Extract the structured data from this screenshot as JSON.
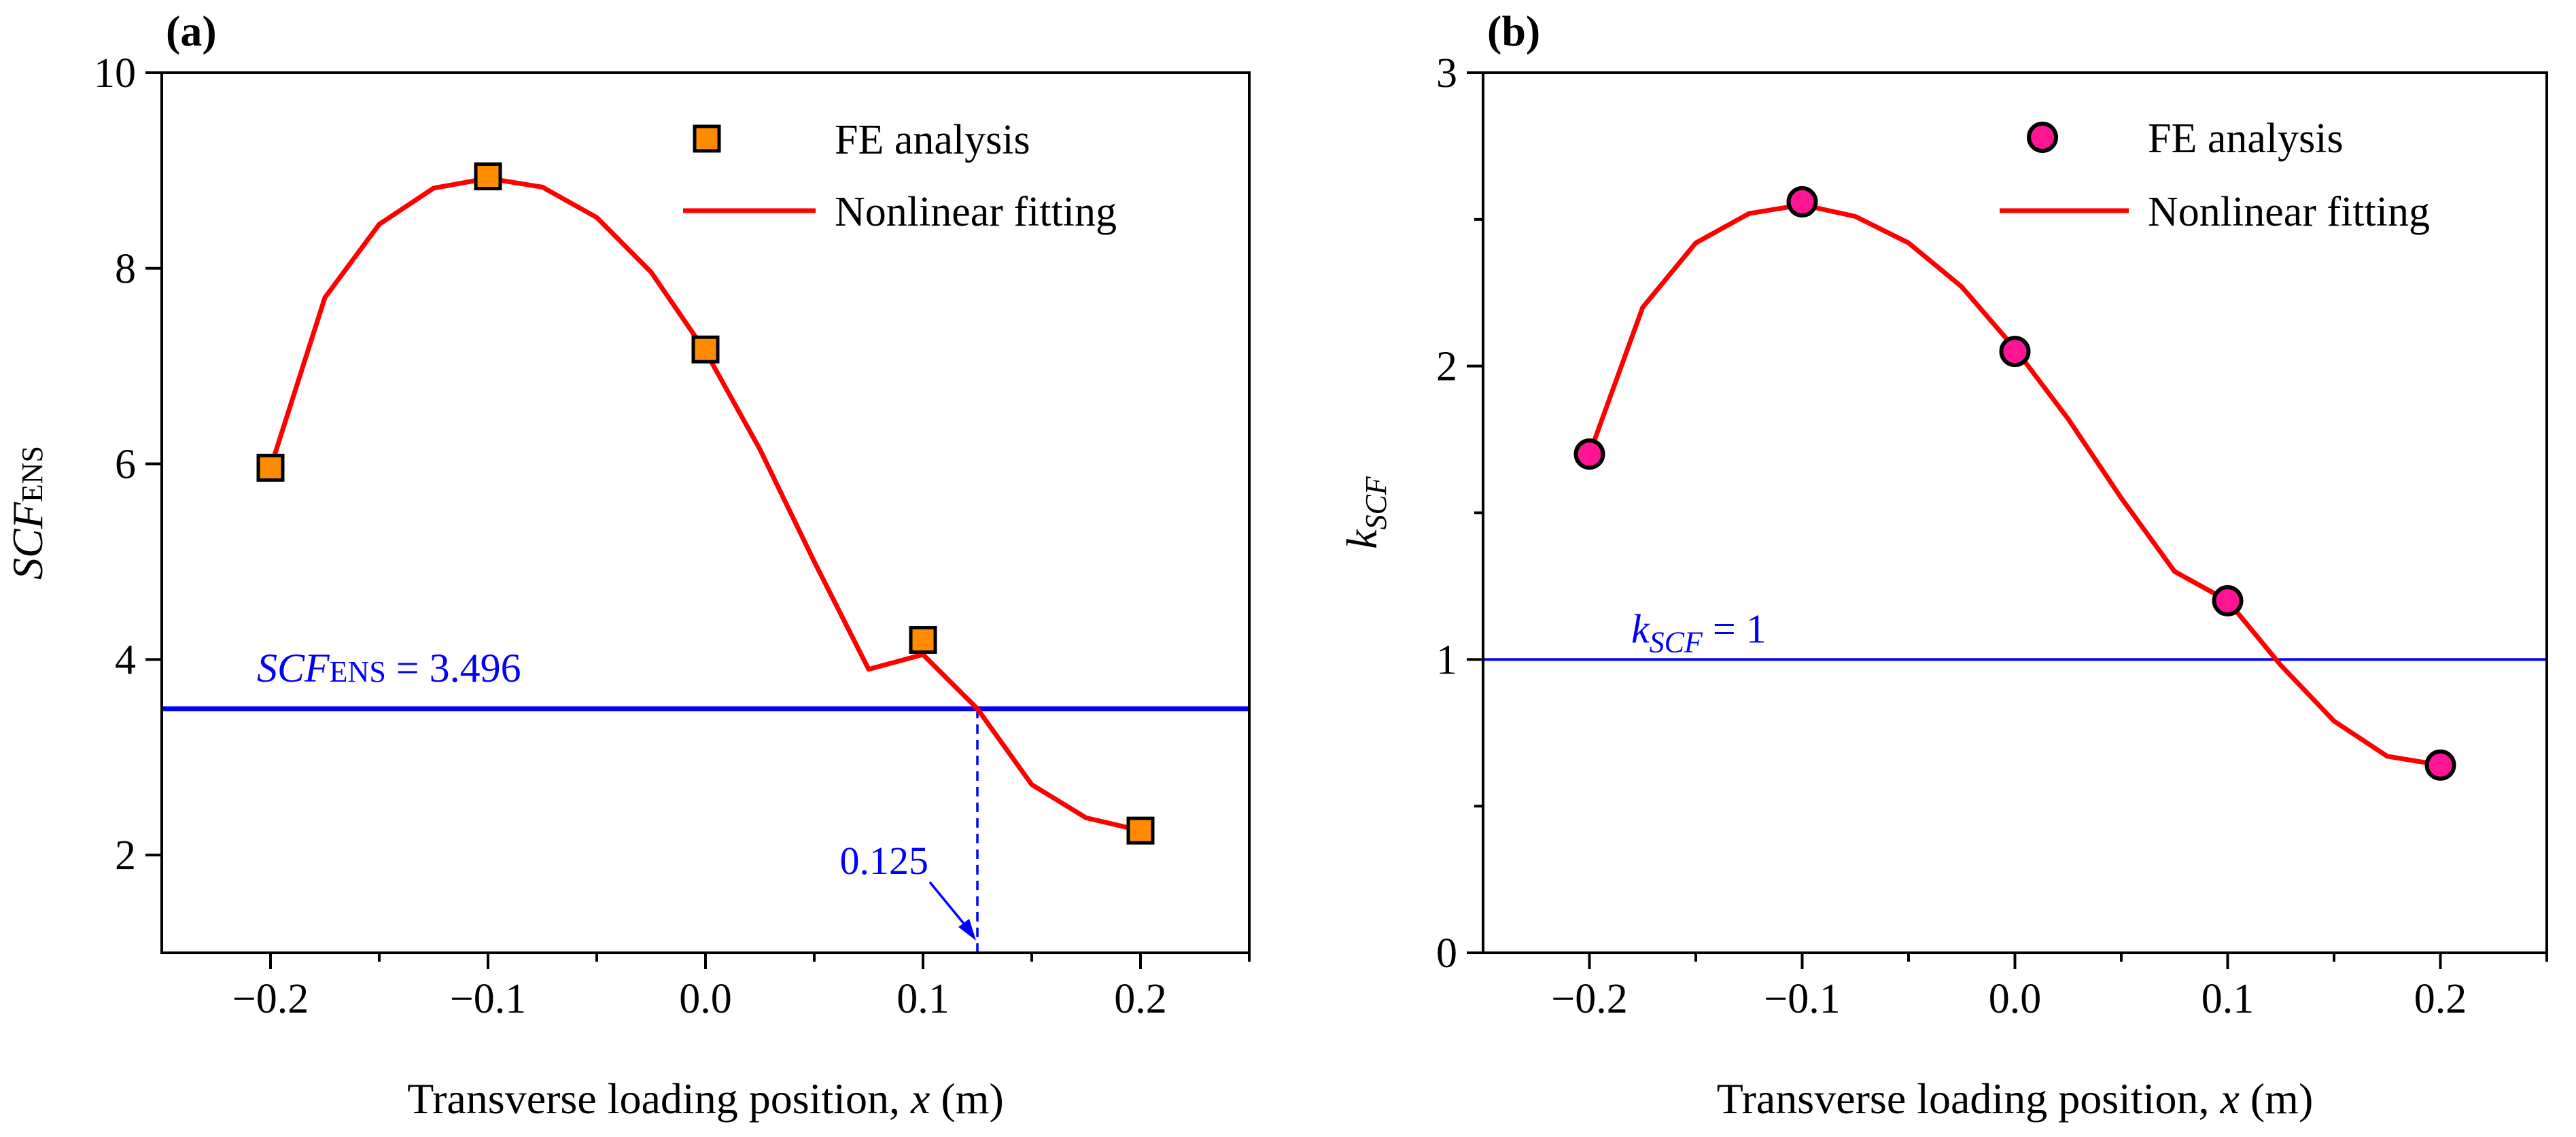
{
  "colors": {
    "axis": "#000000",
    "fit_line": "#ff0000",
    "threshold_line": "#0000ff",
    "annotation": "#0000ff",
    "marker_a": "#ff8c00",
    "marker_b": "#ff1493",
    "marker_edge": "#000000"
  },
  "chart_data": [
    {
      "type": "scatter",
      "panel_label": "(a)",
      "xlabel_main": "Transverse loading position, ",
      "xlabel_var": "x",
      "xlabel_unit": " (m)",
      "ylabel_main": "SCF",
      "ylabel_sub": "ENS",
      "xlim": [
        -0.25,
        0.25
      ],
      "ylim": [
        1,
        10
      ],
      "xticks": [
        -0.2,
        -0.1,
        0.0,
        0.1,
        0.2
      ],
      "xtick_labels": [
        "−0.2",
        "−0.1",
        "0.0",
        "0.1",
        "0.2"
      ],
      "yticks": [
        2,
        4,
        6,
        8,
        10
      ],
      "ytick_labels": [
        "2",
        "4",
        "6",
        "8",
        "10"
      ],
      "legend_position": "top-right",
      "series": [
        {
          "name": "FE analysis",
          "kind": "markers",
          "marker": "square",
          "x": [
            -0.2,
            -0.1,
            0.0,
            0.1,
            0.2
          ],
          "y": [
            5.96,
            8.94,
            7.17,
            4.2,
            2.25
          ]
        },
        {
          "name": "Nonlinear fitting",
          "kind": "curve",
          "x": [
            -0.2,
            -0.175,
            -0.15,
            -0.125,
            -0.1,
            -0.075,
            -0.05,
            -0.025,
            0.0,
            0.025,
            0.05,
            0.075,
            0.1,
            0.125,
            0.15,
            0.175,
            0.2
          ],
          "y": [
            5.96,
            7.7,
            8.45,
            8.82,
            8.92,
            8.83,
            8.52,
            7.96,
            7.15,
            6.15,
            5.0,
            3.9,
            4.05,
            3.496,
            2.72,
            2.38,
            2.25
          ]
        }
      ],
      "threshold": {
        "y": 3.496,
        "label_main": "SCF",
        "label_sub": "ENS",
        "label_rest": " = 3.496"
      },
      "intersection": {
        "x": 0.125,
        "label": "0.125"
      }
    },
    {
      "type": "scatter",
      "panel_label": "(b)",
      "xlabel_main": "Transverse loading position, ",
      "xlabel_var": "x",
      "xlabel_unit": " (m)",
      "ylabel_main": "k",
      "ylabel_sub": "SCF",
      "xlim": [
        -0.25,
        0.25
      ],
      "ylim": [
        0,
        3
      ],
      "xticks": [
        -0.2,
        -0.1,
        0.0,
        0.1,
        0.2
      ],
      "xtick_labels": [
        "−0.2",
        "−0.1",
        "0.0",
        "0.1",
        "0.2"
      ],
      "yticks": [
        0,
        1,
        2,
        3
      ],
      "ytick_labels": [
        "0",
        "1",
        "2",
        "3"
      ],
      "legend_position": "top-right",
      "series": [
        {
          "name": "FE analysis",
          "kind": "markers",
          "marker": "circle",
          "x": [
            -0.2,
            -0.1,
            0.0,
            0.1,
            0.2
          ],
          "y": [
            1.7,
            2.56,
            2.05,
            1.2,
            0.64
          ]
        },
        {
          "name": "Nonlinear fitting",
          "kind": "curve",
          "x": [
            -0.2,
            -0.175,
            -0.15,
            -0.125,
            -0.1,
            -0.075,
            -0.05,
            -0.025,
            0.0,
            0.025,
            0.05,
            0.075,
            0.1,
            0.125,
            0.15,
            0.175,
            0.2
          ],
          "y": [
            1.7,
            2.2,
            2.42,
            2.52,
            2.55,
            2.51,
            2.42,
            2.27,
            2.06,
            1.82,
            1.55,
            1.3,
            1.2,
            0.98,
            0.79,
            0.67,
            0.64
          ]
        }
      ],
      "threshold": {
        "y": 1,
        "label_main": "k",
        "label_sub": "SCF",
        "label_rest": " = 1"
      }
    }
  ]
}
